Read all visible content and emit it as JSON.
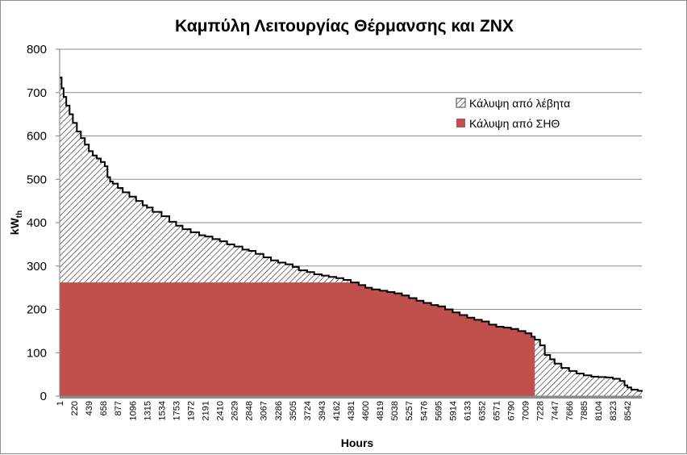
{
  "chart_data": {
    "type": "area",
    "title": "Καμπύλη Λειτουργίας Θέρμανσης και ΖΝΧ",
    "xlabel": "Hours",
    "ylabel": "kW",
    "ylabel_subscript": "th",
    "ylim": [
      0,
      800
    ],
    "xlim": [
      1,
      8760
    ],
    "yticks": [
      0,
      100,
      200,
      300,
      400,
      500,
      600,
      700,
      800
    ],
    "x_tick_labels": [
      "1",
      "220",
      "439",
      "658",
      "877",
      "1096",
      "1315",
      "1534",
      "1753",
      "1972",
      "2191",
      "2410",
      "2629",
      "2848",
      "3067",
      "3286",
      "3505",
      "3724",
      "3943",
      "4162",
      "4381",
      "4600",
      "4819",
      "5038",
      "5257",
      "5476",
      "5695",
      "5914",
      "6133",
      "6352",
      "6571",
      "6790",
      "7009",
      "7228",
      "7447",
      "7666",
      "7885",
      "8104",
      "8323",
      "8542"
    ],
    "grid": true,
    "legend_position": "top-right",
    "series": [
      {
        "name": "Κάλυψη από λέβητα",
        "fill": "hatch",
        "x": [
          1,
          30,
          60,
          100,
          150,
          200,
          260,
          320,
          380,
          440,
          500,
          560,
          620,
          680,
          720,
          760,
          800,
          877,
          950,
          1050,
          1150,
          1250,
          1315,
          1400,
          1534,
          1650,
          1753,
          1850,
          1972,
          2100,
          2191,
          2300,
          2410,
          2520,
          2629,
          2750,
          2848,
          2950,
          3067,
          3180,
          3286,
          3400,
          3505,
          3600,
          3724,
          3830,
          3943,
          4050,
          4162,
          4270,
          4381,
          4500,
          4600,
          4700,
          4819,
          4930,
          5038,
          5150,
          5257,
          5370,
          5476,
          5590,
          5695,
          5800,
          5914,
          6020,
          6133,
          6240,
          6352,
          6460,
          6571,
          6680,
          6790,
          6900,
          7009,
          7100,
          7150,
          7228,
          7300,
          7380,
          7447,
          7550,
          7666,
          7780,
          7885,
          8000,
          8104,
          8220,
          8323,
          8430,
          8500,
          8542,
          8600,
          8700,
          8760
        ],
        "values": [
          735,
          710,
          690,
          670,
          650,
          630,
          610,
          595,
          580,
          565,
          555,
          548,
          540,
          530,
          505,
          495,
          490,
          480,
          470,
          460,
          450,
          440,
          435,
          425,
          415,
          402,
          393,
          385,
          378,
          371,
          368,
          362,
          357,
          350,
          345,
          338,
          335,
          328,
          320,
          313,
          308,
          304,
          298,
          290,
          286,
          281,
          278,
          275,
          272,
          268,
          262,
          256,
          250,
          246,
          243,
          240,
          237,
          232,
          226,
          220,
          215,
          210,
          207,
          200,
          193,
          187,
          181,
          176,
          172,
          165,
          160,
          158,
          155,
          150,
          145,
          137,
          130,
          117,
          95,
          85,
          75,
          65,
          58,
          52,
          48,
          45,
          44,
          43,
          40,
          35,
          25,
          20,
          15,
          12,
          10
        ]
      },
      {
        "name": "Κάλυψη από ΣΗΘ",
        "color": "#c0504d",
        "cap": 262,
        "cutoff_hour": 7150
      }
    ]
  }
}
